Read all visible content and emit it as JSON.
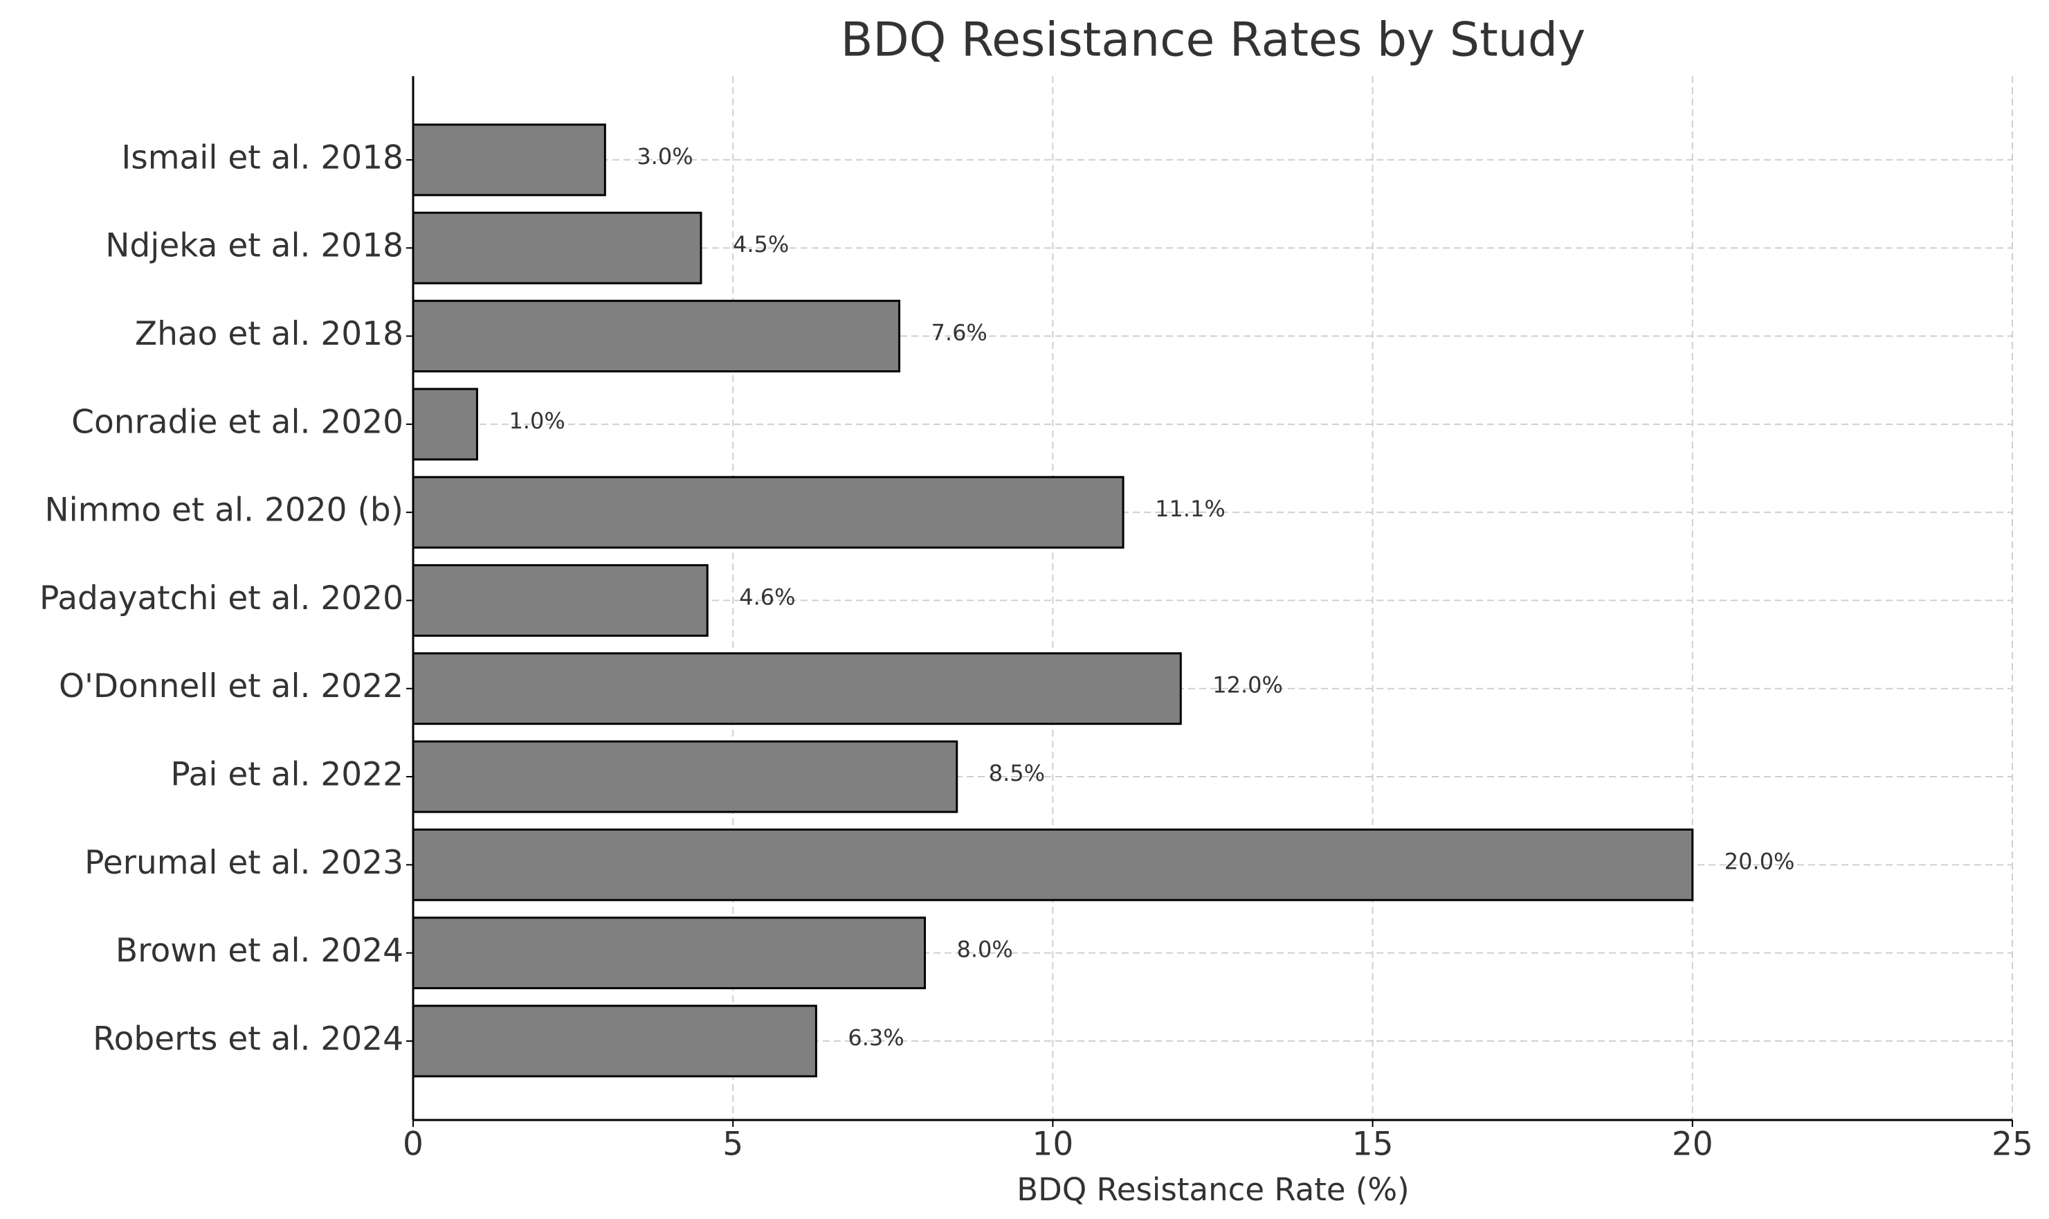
{
  "chart_data": {
    "type": "bar",
    "orientation": "horizontal",
    "title": "BDQ Resistance Rates by Study",
    "x_label": "BDQ Resistance Rate (%)",
    "categories": [
      "Ismail et al. 2018",
      "Ndjeka et al. 2018",
      "Zhao et al. 2018",
      "Conradie et al. 2020",
      "Nimmo et al. 2020 (b)",
      "Padayatchi et al. 2020",
      "O'Donnell et al. 2022",
      "Pai et al. 2022",
      "Perumal et al. 2023",
      "Brown et al. 2024",
      "Roberts et al. 2024"
    ],
    "values": [
      3.0,
      4.5,
      7.6,
      1.0,
      11.1,
      4.6,
      12.0,
      8.5,
      20.0,
      8.0,
      6.3
    ],
    "value_labels": [
      "3.0%",
      "4.5%",
      "7.6%",
      "1.0%",
      "11.1%",
      "4.6%",
      "12.0%",
      "8.5%",
      "20.0%",
      "8.0%",
      "6.3%"
    ],
    "color": "#808080",
    "edgecolor": "#000000",
    "xlim": [
      0,
      25
    ],
    "xticks": [
      0,
      5,
      10,
      15,
      20,
      25
    ],
    "grid": true
  }
}
